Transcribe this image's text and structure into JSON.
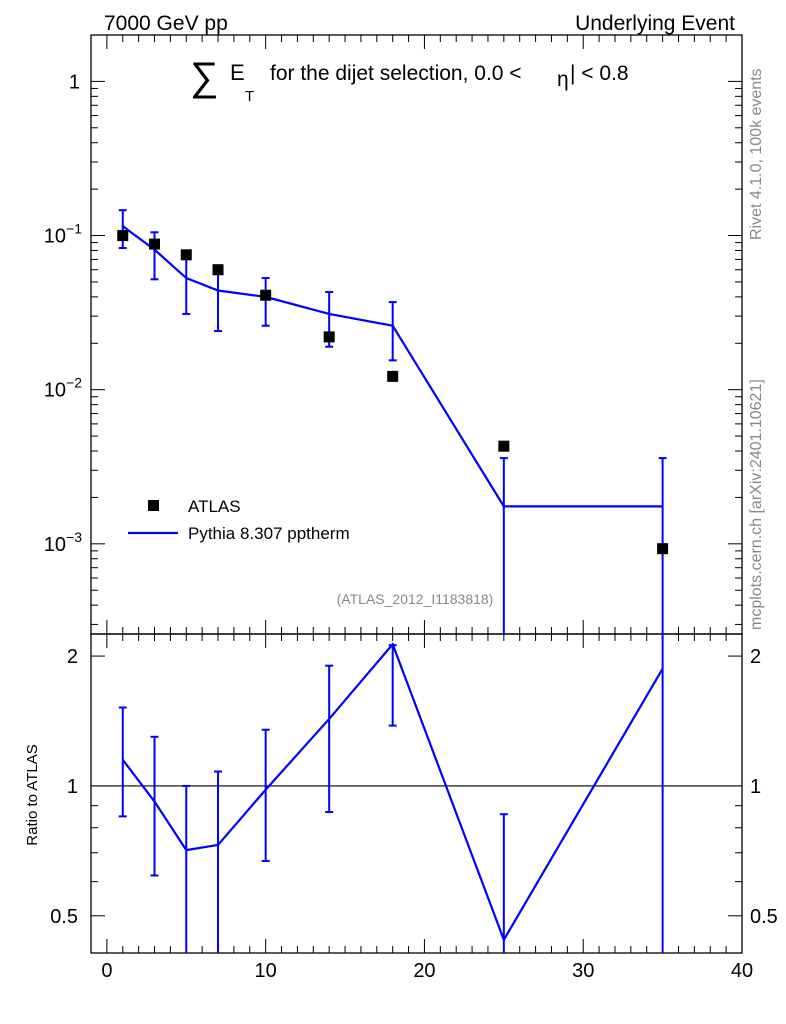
{
  "chart_data": {
    "type": "line",
    "header_left": "7000 GeV pp",
    "header_right": "Underlying Event",
    "title": {
      "sum_symbol": "∑",
      "var": "E",
      "subscript": "T",
      "text": "for the dijet selection, 0.0 <",
      "eta_symbol": "η",
      "text_end": "| < 0.8"
    },
    "watermark": "(ATLAS_2012_I1183818)",
    "side_label_top": "Rivet 4.1.0,  100k events",
    "side_label_bottom": "mcplots.cern.ch [arXiv:2401.10621]",
    "ratio_ylabel": "Ratio to ATLAS",
    "main_yscale": "log",
    "main_ylim": [
      0.00026,
      2.0
    ],
    "xlim": [
      -1,
      40
    ],
    "ratio_ylim": [
      0.41,
      2.25
    ],
    "x_ticks": [
      "0",
      "10",
      "20",
      "30",
      "40"
    ],
    "main_y_ticks": [
      "1",
      "10^-1",
      "10^-2",
      "10^-3"
    ],
    "ratio_y_ticks": [
      "0.5",
      "1",
      "2"
    ],
    "legend": [
      {
        "label": "ATLAS",
        "marker": "square",
        "color": "#000000"
      },
      {
        "label": "Pythia 8.307 pptherm",
        "marker": "line",
        "color": "#0000ff"
      }
    ],
    "data_series": {
      "name": "ATLAS",
      "x": [
        1,
        3,
        5,
        7,
        10,
        14,
        18,
        25,
        35
      ],
      "y": [
        0.1,
        0.088,
        0.075,
        0.06,
        0.041,
        0.022,
        0.0122,
        0.0043,
        0.00093
      ]
    },
    "mc_series": {
      "name": "Pythia 8.307 pptherm",
      "x_edges": [
        0,
        2,
        4,
        6,
        8,
        12,
        16,
        20,
        30,
        40
      ],
      "x": [
        1,
        3,
        5,
        7,
        10,
        14,
        18,
        25,
        35
      ],
      "y": [
        0.115,
        0.081,
        0.053,
        0.044,
        0.04,
        0.031,
        0.026,
        0.00175,
        0.00175
      ],
      "y_err_up": [
        0.146,
        0.105,
        0.075,
        0.064,
        0.053,
        0.043,
        0.037,
        0.0036,
        0.0036
      ],
      "y_err_down": [
        0.083,
        0.052,
        0.031,
        0.024,
        0.026,
        0.019,
        0.0155,
        0.0001,
        0.0001
      ]
    },
    "ratio_series": {
      "x": [
        1,
        3,
        5,
        7,
        10,
        14,
        18,
        25,
        35
      ],
      "y": [
        1.15,
        0.92,
        0.71,
        0.73,
        0.98,
        1.43,
        2.13,
        0.44,
        1.87
      ],
      "err_up": [
        1.52,
        1.3,
        1.0,
        1.08,
        1.35,
        1.9,
        2.12,
        0.86,
        2.25
      ],
      "err_down": [
        0.85,
        0.62,
        0.39,
        0.37,
        0.67,
        0.87,
        1.38,
        0.41,
        0.41
      ]
    },
    "colors": {
      "data": "#000000",
      "mc": "#0000ff",
      "side_text": "#888888"
    }
  }
}
